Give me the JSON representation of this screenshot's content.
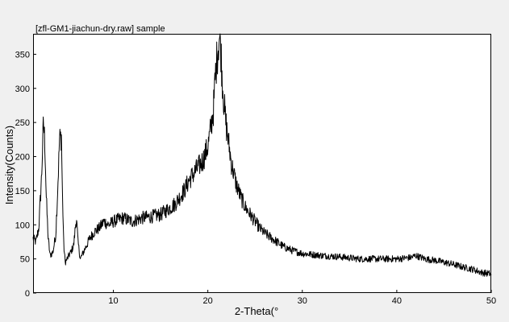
{
  "chart_data": {
    "type": "line",
    "title": "[zfl-GM1-jiachun-dry.raw] sample",
    "xlabel": "2-Theta(°",
    "ylabel": "Intensity(Counts)",
    "xlim": [
      1.5,
      50
    ],
    "ylim": [
      0,
      380
    ],
    "x_ticks": [
      10,
      20,
      30,
      40,
      50
    ],
    "y_ticks": [
      0,
      50,
      100,
      150,
      200,
      250,
      300,
      350
    ],
    "grid": false,
    "line_color": "#000000",
    "x": [
      1.5,
      1.8,
      2.1,
      2.4,
      2.6,
      2.75,
      2.9,
      3.1,
      3.3,
      3.6,
      3.9,
      4.1,
      4.3,
      4.5,
      4.6,
      4.75,
      4.9,
      5.1,
      5.3,
      5.5,
      5.8,
      6.0,
      6.1,
      6.25,
      6.5,
      7.0,
      7.5,
      8.0,
      8.5,
      9.0,
      9.5,
      10.0,
      11.0,
      12.0,
      13.0,
      14.0,
      15.0,
      16.0,
      16.5,
      17.0,
      17.5,
      18.0,
      18.5,
      19.0,
      19.5,
      20.0,
      20.3,
      20.6,
      20.8,
      21.0,
      21.2,
      21.35,
      21.5,
      21.7,
      21.9,
      22.2,
      22.5,
      23.0,
      23.5,
      24.0,
      24.5,
      25.0,
      25.5,
      26.0,
      27.0,
      28.0,
      29.0,
      30.0,
      32.0,
      34.0,
      36.0,
      38.0,
      40.0,
      41.5,
      42.0,
      43.0,
      44.0,
      45.0,
      46.0,
      47.0,
      48.0,
      49.0,
      50.0
    ],
    "y": [
      80,
      75,
      95,
      170,
      250,
      220,
      140,
      80,
      55,
      60,
      85,
      150,
      225,
      230,
      150,
      70,
      45,
      50,
      55,
      60,
      70,
      100,
      110,
      75,
      50,
      65,
      80,
      90,
      95,
      105,
      100,
      105,
      110,
      105,
      110,
      112,
      115,
      125,
      130,
      140,
      150,
      165,
      175,
      185,
      195,
      215,
      240,
      270,
      320,
      350,
      375,
      365,
      320,
      280,
      250,
      220,
      190,
      160,
      140,
      125,
      115,
      105,
      95,
      88,
      78,
      68,
      62,
      58,
      55,
      53,
      50,
      50,
      50,
      52,
      55,
      50,
      48,
      45,
      42,
      38,
      35,
      30,
      28
    ]
  }
}
